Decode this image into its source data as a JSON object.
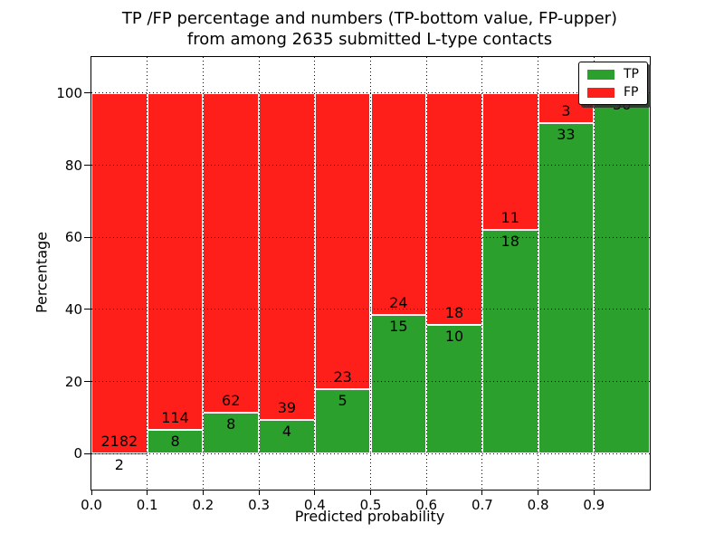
{
  "chart_data": {
    "type": "bar",
    "stacked": true,
    "title_line1": "TP /FP percentage and numbers (TP-bottom value, FP-upper)",
    "title_line2": "from among 2635 submitted L-type contacts",
    "xlabel": "Predicted probability",
    "ylabel": "Percentage",
    "xlim": [
      0.0,
      1.0
    ],
    "ylim": [
      -10,
      110
    ],
    "xticks": [
      "0.0",
      "0.1",
      "0.2",
      "0.3",
      "0.4",
      "0.5",
      "0.6",
      "0.7",
      "0.8",
      "0.9"
    ],
    "yticks": [
      0,
      20,
      40,
      60,
      80,
      100
    ],
    "grid": "dotted",
    "colors": {
      "tp": "#2ca02c",
      "fp": "#ff1f1a",
      "grid": "#000000"
    },
    "legend": {
      "position": "upper right",
      "entries": [
        {
          "label": "TP",
          "color": "#2ca02c"
        },
        {
          "label": "FP",
          "color": "#ff1f1a"
        }
      ]
    },
    "bins": [
      {
        "range": [
          0.0,
          0.1
        ],
        "tp": 2,
        "fp": 2182,
        "tp_pct": 0.09
      },
      {
        "range": [
          0.1,
          0.2
        ],
        "tp": 8,
        "fp": 114,
        "tp_pct": 6.56
      },
      {
        "range": [
          0.2,
          0.3
        ],
        "tp": 8,
        "fp": 62,
        "tp_pct": 11.43
      },
      {
        "range": [
          0.3,
          0.4
        ],
        "tp": 4,
        "fp": 39,
        "tp_pct": 9.3
      },
      {
        "range": [
          0.4,
          0.5
        ],
        "tp": 5,
        "fp": 23,
        "tp_pct": 17.86
      },
      {
        "range": [
          0.5,
          0.6
        ],
        "tp": 15,
        "fp": 24,
        "tp_pct": 38.46
      },
      {
        "range": [
          0.6,
          0.7
        ],
        "tp": 10,
        "fp": 18,
        "tp_pct": 35.71
      },
      {
        "range": [
          0.7,
          0.8
        ],
        "tp": 18,
        "fp": 11,
        "tp_pct": 62.07
      },
      {
        "range": [
          0.8,
          0.9
        ],
        "tp": 33,
        "fp": 3,
        "tp_pct": 91.67
      },
      {
        "range": [
          0.9,
          1.0
        ],
        "tp": 56,
        "fp": 0,
        "tp_pct": 100.0
      }
    ]
  }
}
